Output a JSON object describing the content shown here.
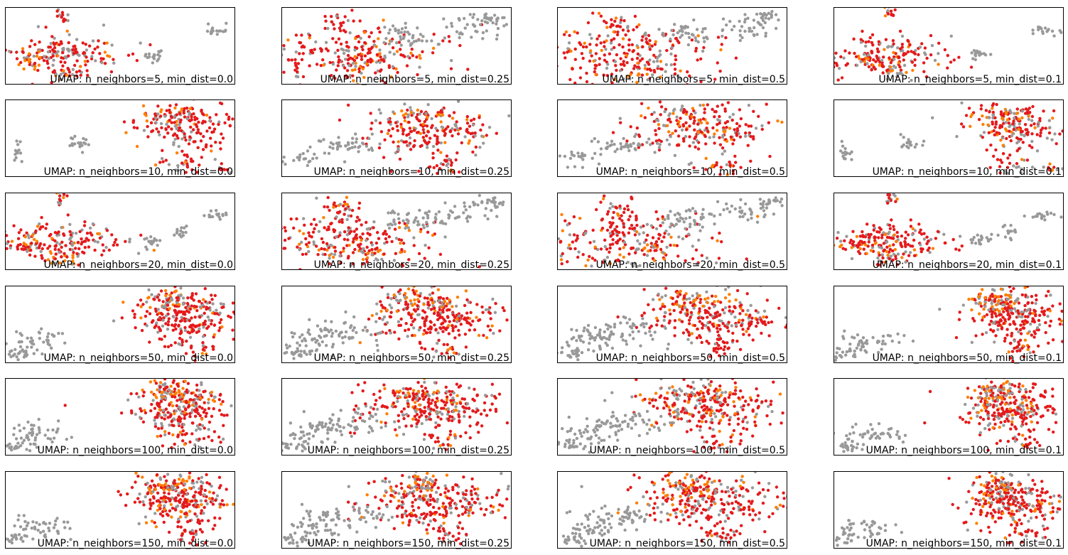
{
  "figure": {
    "rows": [
      "5",
      "10",
      "20",
      "50",
      "100",
      "150"
    ],
    "cols": [
      "0.0",
      "0.25",
      "0.5",
      "0.1"
    ]
  },
  "colors": {
    "gray": "#999999",
    "red": "#e41a1c",
    "orange": "#ff7f00"
  },
  "chart_data": [
    {
      "type": "scatter",
      "title": "UMAP: n_neighbors=5, min_dist=0.0"
    },
    {
      "type": "scatter",
      "title": "UMAP: n_neighbors=5, min_dist=0.25"
    },
    {
      "type": "scatter",
      "title": "UMAP: n_neighbors=5, min_dist=0.5"
    },
    {
      "type": "scatter",
      "title": "UMAP: n_neighbors=5, min_dist=0.1"
    },
    {
      "type": "scatter",
      "title": "UMAP: n_neighbors=10, min_dist=0.0"
    },
    {
      "type": "scatter",
      "title": "UMAP: n_neighbors=10, min_dist=0.25"
    },
    {
      "type": "scatter",
      "title": "UMAP: n_neighbors=10, min_dist=0.5"
    },
    {
      "type": "scatter",
      "title": "UMAP: n_neighbors=10, min_dist=0.1"
    },
    {
      "type": "scatter",
      "title": "UMAP: n_neighbors=20, min_dist=0.0"
    },
    {
      "type": "scatter",
      "title": "UMAP: n_neighbors=20, min_dist=0.25"
    },
    {
      "type": "scatter",
      "title": "UMAP: n_neighbors=20, min_dist=0.5"
    },
    {
      "type": "scatter",
      "title": "UMAP: n_neighbors=20, min_dist=0.1"
    },
    {
      "type": "scatter",
      "title": "UMAP: n_neighbors=50, min_dist=0.0"
    },
    {
      "type": "scatter",
      "title": "UMAP: n_neighbors=50, min_dist=0.25"
    },
    {
      "type": "scatter",
      "title": "UMAP: n_neighbors=50, min_dist=0.5"
    },
    {
      "type": "scatter",
      "title": "UMAP: n_neighbors=50, min_dist=0.1"
    },
    {
      "type": "scatter",
      "title": "UMAP: n_neighbors=100, min_dist=0.0"
    },
    {
      "type": "scatter",
      "title": "UMAP: n_neighbors=100, min_dist=0.25"
    },
    {
      "type": "scatter",
      "title": "UMAP: n_neighbors=100, min_dist=0.5"
    },
    {
      "type": "scatter",
      "title": "UMAP: n_neighbors=100, min_dist=0.1"
    },
    {
      "type": "scatter",
      "title": "UMAP: n_neighbors=150, min_dist=0.0"
    },
    {
      "type": "scatter",
      "title": "UMAP: n_neighbors=150, min_dist=0.25"
    },
    {
      "type": "scatter",
      "title": "UMAP: n_neighbors=150, min_dist=0.5"
    },
    {
      "type": "scatter",
      "title": "UMAP: n_neighbors=150, min_dist=0.1"
    }
  ]
}
